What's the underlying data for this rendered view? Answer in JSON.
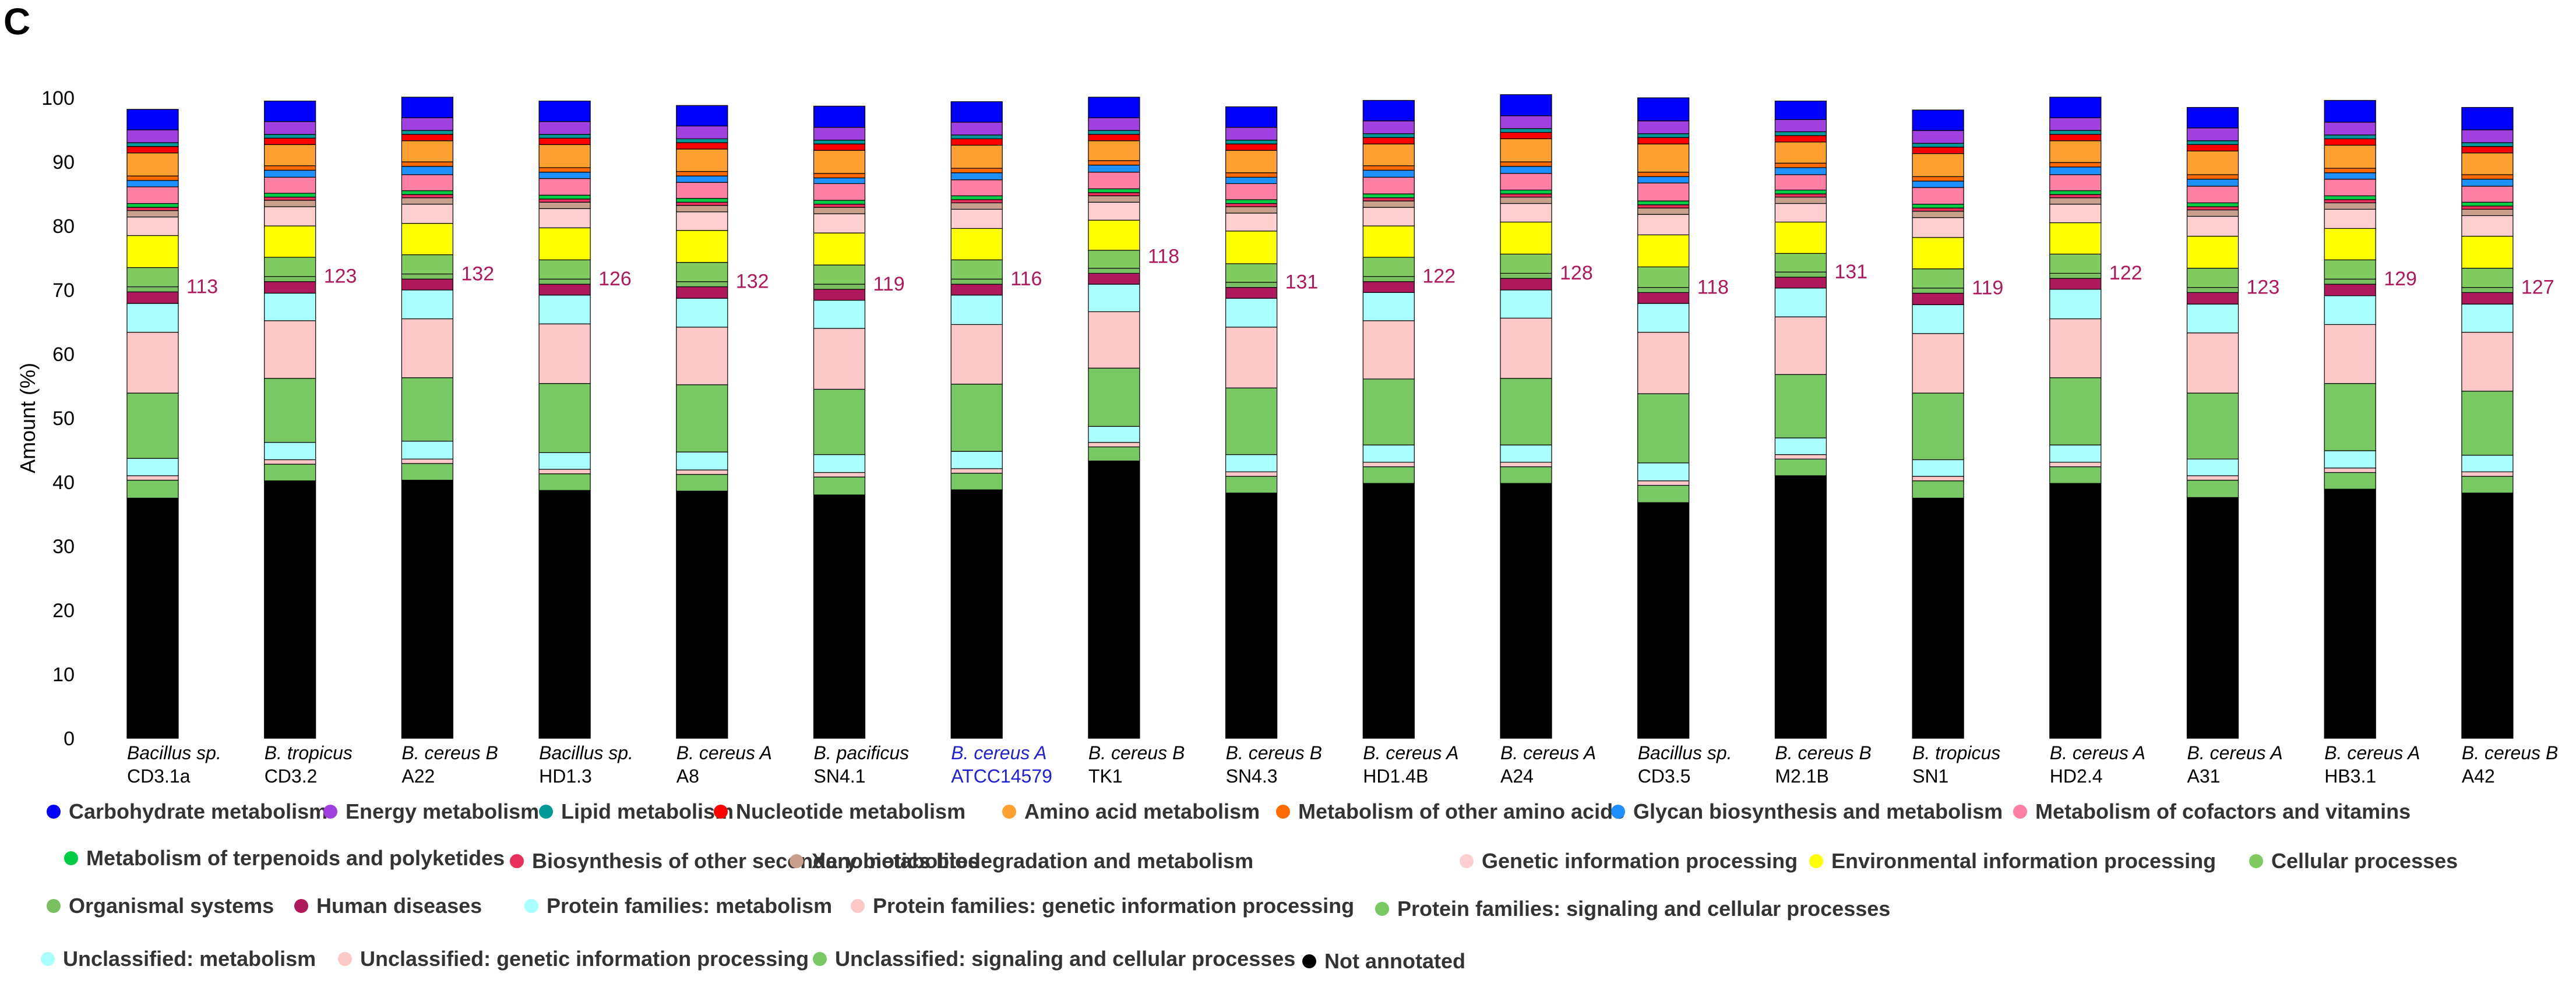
{
  "panel_label": "C",
  "chart_data": {
    "type": "bar",
    "stacked": true,
    "ylabel": "Amount (%)",
    "ylim": [
      0,
      100
    ],
    "yticks": [
      0,
      10,
      20,
      30,
      40,
      50,
      60,
      70,
      80,
      90,
      100
    ],
    "categories": [
      {
        "species": "Bacillus sp.",
        "italic_species": true,
        "strain": "CD3.1a",
        "annotation": "113",
        "highlight": false
      },
      {
        "species": "B. tropicus",
        "italic_species": true,
        "strain": "CD3.2",
        "annotation": "123",
        "highlight": false
      },
      {
        "species": "B. cereus B",
        "italic_species": true,
        "strain": "A22",
        "annotation": "132",
        "highlight": false
      },
      {
        "species": "Bacillus sp.",
        "italic_species": true,
        "strain": "HD1.3",
        "annotation": "126",
        "highlight": false
      },
      {
        "species": "B. cereus A",
        "italic_species": true,
        "strain": "A8",
        "annotation": "132",
        "highlight": false
      },
      {
        "species": "B. pacificus",
        "italic_species": true,
        "strain": "SN4.1",
        "annotation": "119",
        "highlight": false
      },
      {
        "species": "B. cereus A",
        "italic_species": true,
        "strain": "ATCC14579",
        "annotation": "116",
        "highlight": true
      },
      {
        "species": "B. cereus B",
        "italic_species": true,
        "strain": "TK1",
        "annotation": "118",
        "highlight": false
      },
      {
        "species": "B. cereus B",
        "italic_species": true,
        "strain": "SN4.3",
        "annotation": "131",
        "highlight": false
      },
      {
        "species": "B. cereus A",
        "italic_species": true,
        "strain": "HD1.4B",
        "annotation": "122",
        "highlight": false
      },
      {
        "species": "B. cereus A",
        "italic_species": true,
        "strain": "A24",
        "annotation": "128",
        "highlight": false
      },
      {
        "species": "Bacillus sp.",
        "italic_species": true,
        "strain": "CD3.5",
        "annotation": "118",
        "highlight": false
      },
      {
        "species": "B. cereus B",
        "italic_species": true,
        "strain": "M2.1B",
        "annotation": "131",
        "highlight": false
      },
      {
        "species": "B. tropicus",
        "italic_species": true,
        "strain": "SN1",
        "annotation": "119",
        "highlight": false
      },
      {
        "species": "B. cereus A",
        "italic_species": true,
        "strain": "HD2.4",
        "annotation": "122",
        "highlight": false
      },
      {
        "species": "B. cereus A",
        "italic_species": true,
        "strain": "A31",
        "annotation": "123",
        "highlight": false
      },
      {
        "species": "B. cereus A",
        "italic_species": true,
        "strain": "HB3.1",
        "annotation": "129",
        "highlight": false
      },
      {
        "species": "B. cereus B",
        "italic_species": true,
        "strain": "A42",
        "annotation": "127",
        "highlight": false
      }
    ],
    "annotation_color": "#b0185c",
    "highlight_color": "#1f1fd6",
    "series_order_bottom_to_top": [
      "Not annotated",
      "Unclassified: signaling and cellular processes",
      "Unclassified: genetic information processing",
      "Unclassified: metabolism",
      "Protein families: signaling and cellular processes",
      "Protein families: genetic information processing",
      "Protein families: metabolism",
      "Human diseases",
      "Organismal systems",
      "Cellular processes",
      "Environmental information processing",
      "Genetic information processing",
      "Xenobiotics biodegradation and metabolism",
      "Biosynthesis of other secondary metabolites",
      "Metabolism of terpenoids and polyketides",
      "Metabolism of cofactors and vitamins",
      "Glycan biosynthesis and metabolism",
      "Metabolism of other amino acids",
      "Amino acid metabolism",
      "Nucleotide metabolism",
      "Lipid metabolism",
      "Energy metabolism",
      "Carbohydrate metabolism"
    ],
    "series": [
      {
        "name": "Carbohydrate metabolism",
        "color": "#0000ff",
        "values": [
          3.2,
          3.2,
          3.2,
          3.2,
          3.2,
          3.3,
          3.2,
          3.2,
          3.2,
          3.2,
          3.3,
          3.6,
          2.9,
          3.2,
          3.2,
          3.2,
          3.4,
          3.5
        ]
      },
      {
        "name": "Energy metabolism",
        "color": "#a040e0",
        "values": [
          2.0,
          2.0,
          2.0,
          2.0,
          2.0,
          2.0,
          2.0,
          2.0,
          2.0,
          2.0,
          2.0,
          2.0,
          1.9,
          2.0,
          2.0,
          2.0,
          2.0,
          2.0
        ]
      },
      {
        "name": "Lipid metabolism",
        "color": "#009999",
        "values": [
          0.6,
          0.6,
          0.6,
          0.6,
          0.6,
          0.6,
          0.6,
          0.6,
          0.6,
          0.6,
          0.6,
          0.6,
          0.6,
          0.6,
          0.6,
          0.6,
          0.6,
          0.6
        ]
      },
      {
        "name": "Nucleotide metabolism",
        "color": "#ff0000",
        "values": [
          1.0,
          1.0,
          1.0,
          1.0,
          1.0,
          1.0,
          1.0,
          1.0,
          1.0,
          1.0,
          1.0,
          1.0,
          1.0,
          1.0,
          1.0,
          1.0,
          1.0,
          1.0
        ]
      },
      {
        "name": "Amino acid metabolism",
        "color": "#ffa030",
        "values": [
          3.6,
          3.3,
          3.3,
          3.6,
          3.5,
          3.6,
          3.6,
          3.1,
          3.5,
          3.4,
          3.6,
          4.4,
          3.3,
          3.6,
          3.4,
          3.7,
          3.6,
          3.4
        ]
      },
      {
        "name": "Metabolism of other amino acids",
        "color": "#ff6a00",
        "values": [
          0.7,
          0.7,
          0.7,
          0.7,
          0.7,
          0.7,
          0.7,
          0.7,
          0.7,
          0.7,
          0.7,
          0.7,
          0.7,
          0.7,
          0.7,
          0.7,
          0.7,
          0.7
        ]
      },
      {
        "name": "Glycan biosynthesis and metabolism",
        "color": "#1e90ff",
        "values": [
          1.0,
          1.1,
          1.3,
          1.0,
          1.0,
          0.9,
          1.1,
          1.1,
          1.0,
          1.1,
          1.1,
          1.0,
          1.1,
          1.0,
          1.2,
          1.1,
          1.0,
          1.1
        ]
      },
      {
        "name": "Metabolism of cofactors and vitamins",
        "color": "#ff7fa5",
        "values": [
          2.6,
          2.5,
          2.5,
          2.6,
          2.5,
          2.6,
          2.5,
          2.6,
          2.5,
          2.6,
          2.6,
          2.8,
          2.4,
          2.6,
          2.5,
          2.6,
          2.6,
          2.5
        ]
      },
      {
        "name": "Metabolism of terpenoids and polyketides",
        "color": "#00cc44",
        "values": [
          0.6,
          0.6,
          0.6,
          0.6,
          0.6,
          0.6,
          0.6,
          0.6,
          0.6,
          0.6,
          0.6,
          0.6,
          0.6,
          0.6,
          0.6,
          0.6,
          0.6,
          0.6
        ]
      },
      {
        "name": "Biosynthesis of other secondary metabolites",
        "color": "#e8305a",
        "values": [
          0.5,
          0.5,
          0.5,
          0.5,
          0.5,
          0.5,
          0.5,
          0.5,
          0.5,
          0.5,
          0.5,
          0.5,
          0.5,
          0.5,
          0.5,
          0.5,
          0.5,
          0.5
        ]
      },
      {
        "name": "Xenobiotics biodegradation and metabolism",
        "color": "#c8a08c",
        "values": [
          1.0,
          1.0,
          1.0,
          1.0,
          1.0,
          1.0,
          1.0,
          1.0,
          1.0,
          1.0,
          1.0,
          1.0,
          1.0,
          1.0,
          1.0,
          1.0,
          1.0,
          1.0
        ]
      },
      {
        "name": "Genetic information processing",
        "color": "#ffcece",
        "values": [
          2.9,
          3.0,
          3.0,
          3.0,
          2.9,
          3.0,
          3.0,
          2.8,
          2.8,
          2.9,
          2.9,
          3.2,
          2.9,
          3.1,
          2.9,
          3.1,
          3.0,
          3.2
        ]
      },
      {
        "name": "Environmental information processing",
        "color": "#ffff00",
        "values": [
          5.0,
          4.9,
          4.9,
          5.0,
          5.0,
          5.0,
          4.9,
          4.7,
          5.1,
          4.9,
          5.0,
          5.0,
          4.9,
          4.9,
          4.9,
          5.0,
          4.9,
          5.0
        ]
      },
      {
        "name": "Cellular processes",
        "color": "#80cc60",
        "values": [
          3.0,
          3.0,
          3.0,
          3.0,
          3.0,
          3.0,
          3.0,
          2.8,
          2.9,
          3.0,
          3.0,
          3.2,
          2.9,
          3.0,
          3.0,
          3.0,
          3.0,
          3.0
        ]
      },
      {
        "name": "Organismal systems",
        "color": "#78c060",
        "values": [
          0.8,
          0.8,
          0.8,
          0.8,
          0.8,
          0.8,
          0.8,
          0.8,
          0.8,
          0.8,
          0.8,
          0.8,
          0.8,
          0.8,
          0.8,
          0.8,
          0.8,
          0.8
        ]
      },
      {
        "name": "Human diseases",
        "color": "#b0185c",
        "values": [
          1.8,
          1.8,
          1.7,
          1.7,
          1.8,
          1.7,
          1.7,
          1.7,
          1.7,
          1.7,
          1.8,
          1.7,
          1.7,
          1.8,
          1.7,
          1.8,
          1.8,
          1.8
        ]
      },
      {
        "name": "Protein families: metabolism",
        "color": "#aaffff",
        "values": [
          4.5,
          4.3,
          4.5,
          4.5,
          4.5,
          4.4,
          4.6,
          4.3,
          4.5,
          4.4,
          4.4,
          4.5,
          4.5,
          4.5,
          4.6,
          4.5,
          4.5,
          4.4
        ]
      },
      {
        "name": "Protein families: genetic information processing",
        "color": "#ffc8c8",
        "values": [
          9.5,
          9.0,
          9.2,
          9.3,
          9.0,
          9.5,
          9.3,
          8.8,
          9.5,
          9.1,
          9.4,
          9.6,
          9.0,
          9.3,
          9.2,
          9.4,
          9.2,
          9.2
        ]
      },
      {
        "name": "Protein families: signaling and cellular processes",
        "color": "#78c864",
        "values": [
          10.2,
          10.0,
          9.9,
          10.8,
          10.5,
          10.2,
          10.5,
          9.1,
          10.4,
          10.3,
          10.4,
          10.8,
          9.9,
          10.4,
          10.5,
          10.3,
          10.5,
          10.0
        ]
      },
      {
        "name": "Unclassified: metabolism",
        "color": "#aaffff",
        "values": [
          2.7,
          2.7,
          2.8,
          2.6,
          2.8,
          2.8,
          2.7,
          2.5,
          2.7,
          2.7,
          2.7,
          2.8,
          2.6,
          2.6,
          2.7,
          2.6,
          2.7,
          2.6
        ]
      },
      {
        "name": "Unclassified: genetic information processing",
        "color": "#ffc8c8",
        "values": [
          0.7,
          0.7,
          0.7,
          0.7,
          0.7,
          0.7,
          0.7,
          0.7,
          0.7,
          0.7,
          0.7,
          0.7,
          0.7,
          0.7,
          0.7,
          0.7,
          0.7,
          0.7
        ]
      },
      {
        "name": "Unclassified: signaling and cellular processes",
        "color": "#78c864",
        "values": [
          2.8,
          2.6,
          2.6,
          2.6,
          2.6,
          2.8,
          2.6,
          2.2,
          2.6,
          2.6,
          2.6,
          2.7,
          2.6,
          2.7,
          2.6,
          2.7,
          2.6,
          2.6
        ]
      },
      {
        "name": "Not annotated",
        "color": "#000000",
        "values": [
          37.5,
          40.2,
          40.3,
          38.7,
          38.6,
          38.0,
          38.8,
          43.3,
          38.3,
          39.8,
          39.8,
          36.8,
          41.0,
          37.5,
          39.8,
          37.6,
          38.9,
          38.3
        ]
      }
    ]
  },
  "legend": [
    {
      "label": "Carbohydrate metabolism",
      "color": "#0000ff"
    },
    {
      "label": "Energy metabolism",
      "color": "#a040e0"
    },
    {
      "label": "Lipid metabolism",
      "color": "#009999"
    },
    {
      "label": "Nucleotide metabolism",
      "color": "#ff0000"
    },
    {
      "label": "Amino acid metabolism",
      "color": "#ffa030"
    },
    {
      "label": "Metabolism of other amino acids",
      "color": "#ff6a00"
    },
    {
      "label": "Glycan biosynthesis and metabolism",
      "color": "#1e90ff"
    },
    {
      "label": "Metabolism of cofactors and vitamins",
      "color": "#ff7fa5"
    },
    {
      "label": "Metabolism of terpenoids and polyketides",
      "color": "#00cc44"
    },
    {
      "label": "Biosynthesis of other secondary metabolites",
      "color": "#e8305a"
    },
    {
      "label": "Xenobiotics biodegradation and metabolism",
      "color": "#c8a08c"
    },
    {
      "label": "Genetic information processing",
      "color": "#ffcece"
    },
    {
      "label": "Environmental information processing",
      "color": "#ffff00"
    },
    {
      "label": "Cellular processes",
      "color": "#80cc60"
    },
    {
      "label": "Organismal systems",
      "color": "#78c060"
    },
    {
      "label": "Human diseases",
      "color": "#b0185c"
    },
    {
      "label": "Protein families: metabolism",
      "color": "#aaffff"
    },
    {
      "label": "Protein families: genetic information processing",
      "color": "#ffc8c8"
    },
    {
      "label": "Protein families: signaling and cellular processes",
      "color": "#78c864"
    },
    {
      "label": "Unclassified: metabolism",
      "color": "#aaffff"
    },
    {
      "label": "Unclassified: genetic information processing",
      "color": "#ffc8c8"
    },
    {
      "label": "Unclassified: signaling and cellular processes",
      "color": "#78c864"
    },
    {
      "label": "Not annotated",
      "color": "#000000"
    }
  ]
}
